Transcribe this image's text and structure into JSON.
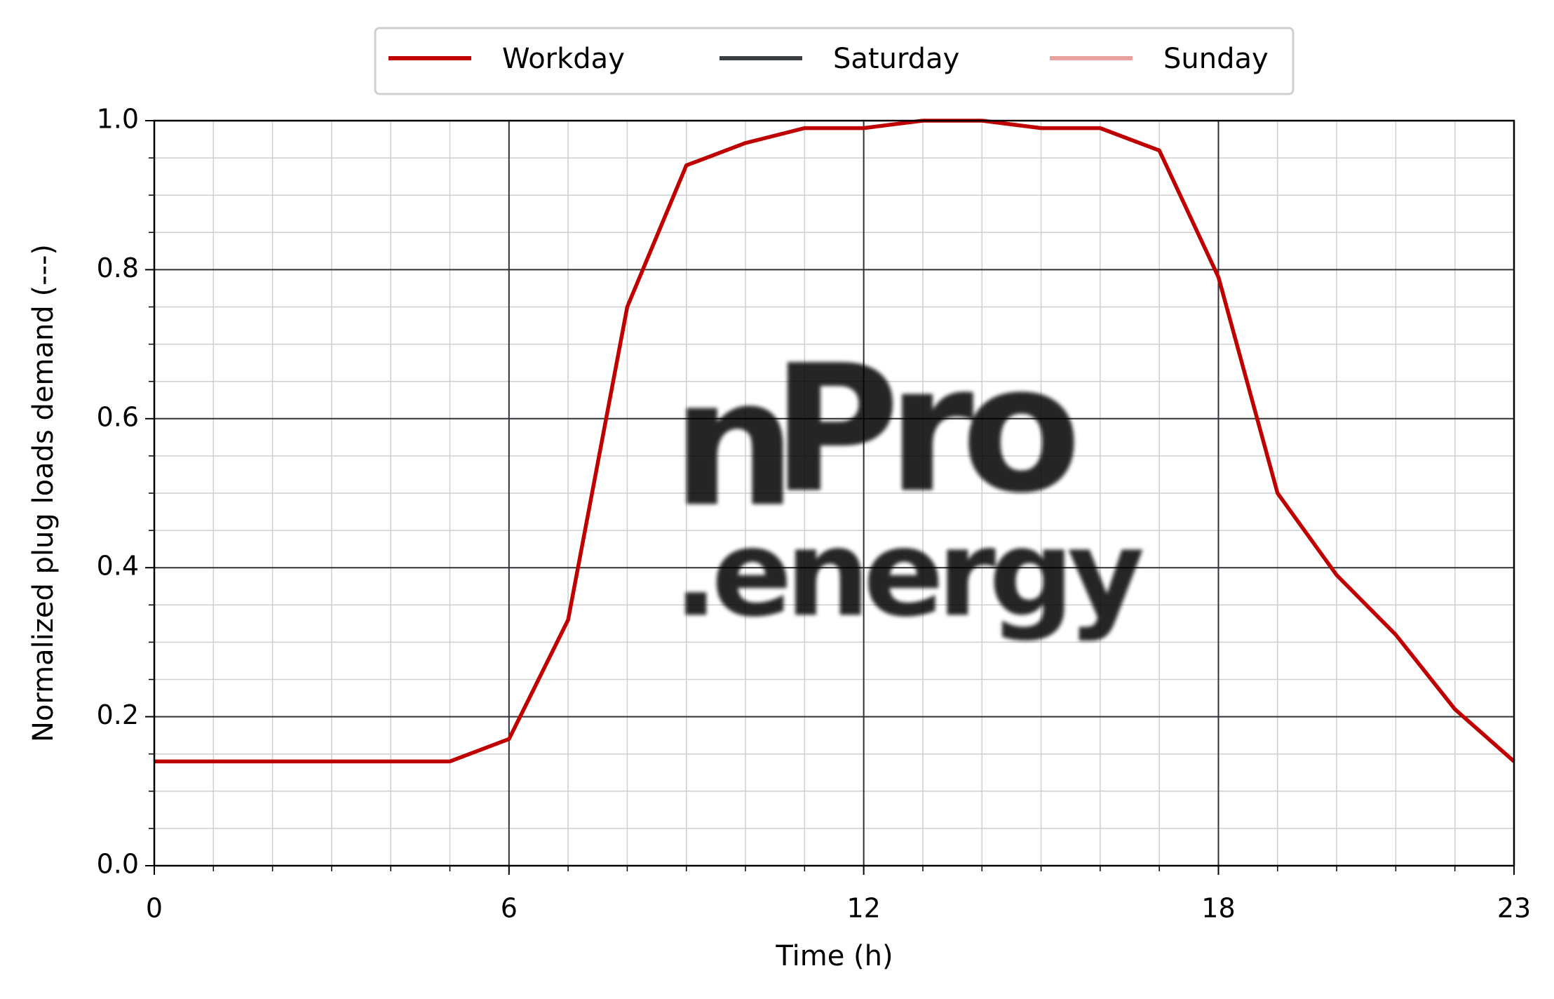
{
  "chart_data": {
    "type": "line",
    "x_label": "Time (h)",
    "y_label": "Normalized plug loads demand (---)",
    "x": [
      0,
      1,
      2,
      3,
      4,
      5,
      6,
      7,
      8,
      9,
      10,
      11,
      12,
      13,
      14,
      15,
      16,
      17,
      18,
      19,
      20,
      21,
      22,
      23
    ],
    "series": [
      {
        "name": "Workday",
        "color": "#c00000",
        "values": [
          0.14,
          0.14,
          0.14,
          0.14,
          0.14,
          0.14,
          0.17,
          0.33,
          0.75,
          0.94,
          0.97,
          0.99,
          0.99,
          1.0,
          1.0,
          0.99,
          0.99,
          0.96,
          0.79,
          0.5,
          0.39,
          0.31,
          0.21,
          0.14
        ]
      },
      {
        "name": "Saturday",
        "color": "#3a3d42",
        "values": [
          null,
          null,
          null,
          null,
          null,
          null,
          null,
          null,
          null,
          null,
          null,
          null,
          null,
          null,
          null,
          null,
          null,
          null,
          null,
          null,
          null,
          null,
          null,
          null
        ]
      },
      {
        "name": "Sunday",
        "color": "#e8a0a0",
        "values": [
          null,
          null,
          null,
          null,
          null,
          null,
          null,
          null,
          null,
          null,
          null,
          null,
          null,
          null,
          null,
          null,
          null,
          null,
          null,
          null,
          null,
          null,
          null,
          null
        ]
      }
    ],
    "xlim": [
      0,
      23
    ],
    "xticks": [
      0,
      6,
      12,
      18,
      23
    ],
    "ylim": [
      0,
      1
    ],
    "yticks": [
      {
        "value": 0,
        "label": "0.0"
      },
      0.2,
      0.4,
      0.6,
      0.8,
      {
        "value": 1,
        "label": "1.0"
      }
    ],
    "x_minor_step": 1,
    "y_minor_step": 0.05,
    "grid": true,
    "legend": "top",
    "watermark": {
      "part1": "n",
      "part2": "Pro",
      "part3": ".energy"
    }
  }
}
